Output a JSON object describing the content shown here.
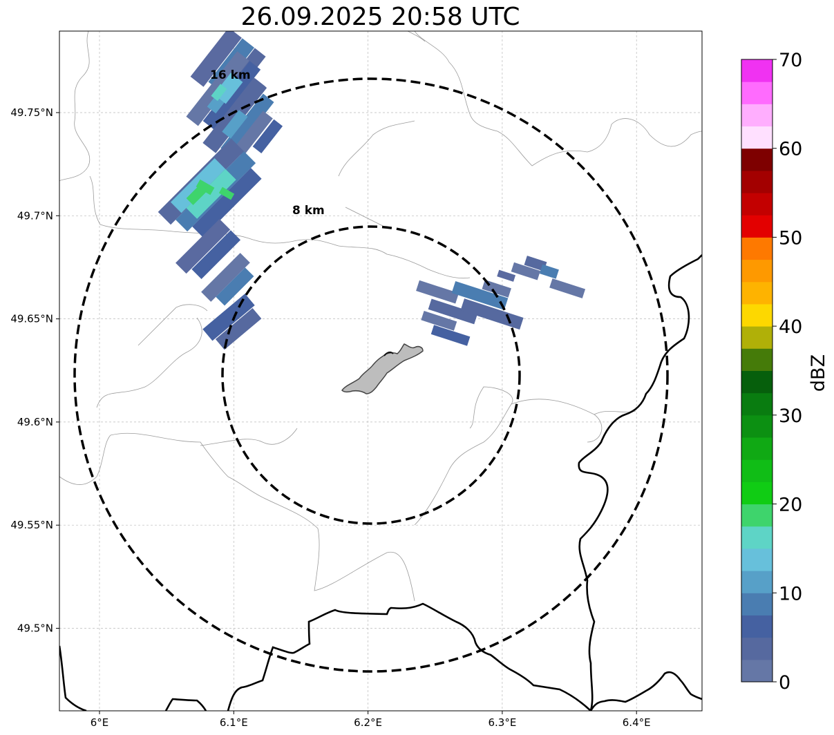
{
  "title": "26.09.2025 20:58 UTC",
  "map": {
    "x_ticks": [
      {
        "value": 6.0,
        "label": "6°E"
      },
      {
        "value": 6.1,
        "label": "6.1°E"
      },
      {
        "value": 6.2,
        "label": "6.2°E"
      },
      {
        "value": 6.3,
        "label": "6.3°E"
      },
      {
        "value": 6.4,
        "label": "6.4°E"
      }
    ],
    "y_ticks": [
      {
        "value": 49.75,
        "label": "49.75°N"
      },
      {
        "value": 49.7,
        "label": "49.7°N"
      },
      {
        "value": 49.65,
        "label": "49.65°N"
      },
      {
        "value": 49.6,
        "label": "49.6°N"
      },
      {
        "value": 49.55,
        "label": "49.55°N"
      },
      {
        "value": 49.5,
        "label": "49.5°N"
      }
    ],
    "grid": true,
    "range_rings": [
      {
        "radius_km": 8,
        "label": "8 km"
      },
      {
        "radius_km": 16,
        "label": "16 km"
      }
    ]
  },
  "colorbar": {
    "label": "dBZ",
    "min": 0,
    "max": 70,
    "tick_values": [
      0,
      10,
      20,
      30,
      40,
      50,
      60,
      70
    ],
    "tick_labels": [
      "0",
      "10",
      "20",
      "30",
      "40",
      "50",
      "60",
      "70"
    ],
    "colors": [
      "#6577a6",
      "#56699f",
      "#4561a1",
      "#4a7db1",
      "#57a0c8",
      "#67c0db",
      "#5ed4c6",
      "#3ed46c",
      "#10cc14",
      "#10bd16",
      "#10a914",
      "#0c9012",
      "#097c10",
      "#065f0c",
      "#457b09",
      "#b0b008",
      "#fdd800",
      "#feb300",
      "#fe9900",
      "#fe7900",
      "#e30000",
      "#c30000",
      "#a30000",
      "#7e0000",
      "#ffe0ff",
      "#ffaefe",
      "#ff6bfe",
      "#f032f2"
    ]
  }
}
